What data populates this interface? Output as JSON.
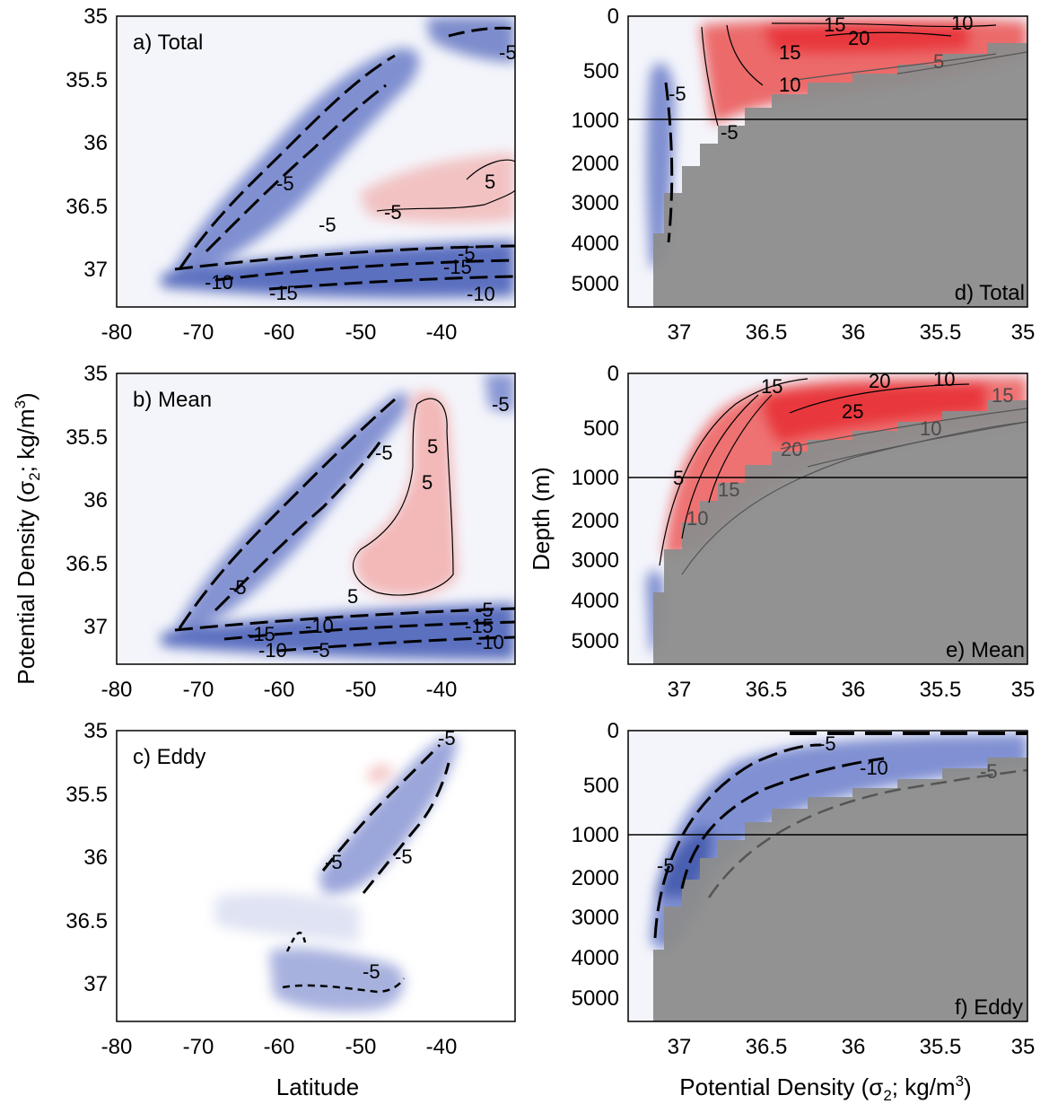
{
  "figure": {
    "left_ylabel_prefix": "Potential Density (σ",
    "left_ylabel_sub": "2",
    "left_ylabel_suffix": "; kg/m",
    "left_ylabel_sup": "3",
    "left_ylabel_close": ")",
    "left_xlabel": "Latitude",
    "right_ylabel": "Depth (m)",
    "right_xlabel_prefix": "Potential Density (σ",
    "right_xlabel_sub": "2",
    "right_xlabel_suffix": "; kg/m",
    "right_xlabel_sup": "3",
    "right_xlabel_close": ")"
  },
  "colors": {
    "negative": "#4a5fb0",
    "negative_light": "#b9c2e4",
    "positive": "#e8373c",
    "positive_light": "#f6c9c9",
    "land": "#8c8c8c",
    "contour": "#000000",
    "contour_grey": "#555555"
  },
  "chart_data": [
    {
      "id": "a",
      "type": "heatmap",
      "panel_label": "a) Total",
      "x_ticks": [
        "-80",
        "-70",
        "-60",
        "-50",
        "-40"
      ],
      "y_ticks": [
        "35",
        "35.5",
        "36",
        "36.5",
        "37"
      ],
      "xlim": [
        -80,
        -31
      ],
      "ylim": [
        37.3,
        35
      ],
      "contour_labels": [
        "-5",
        "-5",
        "-5",
        "-5",
        "-5",
        "5",
        "-5",
        "-10",
        "-15",
        "-10",
        "-15",
        "-10"
      ]
    },
    {
      "id": "b",
      "type": "heatmap",
      "panel_label": "b) Mean",
      "x_ticks": [
        "-80",
        "-70",
        "-60",
        "-50",
        "-40"
      ],
      "y_ticks": [
        "35",
        "35.5",
        "36",
        "36.5",
        "37"
      ],
      "xlim": [
        -80,
        -31
      ],
      "ylim": [
        37.3,
        35
      ],
      "contour_labels": [
        "-5",
        "-5",
        "5",
        "5",
        "5",
        "-5",
        "-10",
        "-15",
        "-10",
        "-5",
        "-5",
        "-15",
        "-10"
      ]
    },
    {
      "id": "c",
      "type": "heatmap",
      "panel_label": "c) Eddy",
      "x_ticks": [
        "-80",
        "-70",
        "-60",
        "-50",
        "-40"
      ],
      "y_ticks": [
        "35",
        "35.5",
        "36",
        "36.5",
        "37"
      ],
      "xlim": [
        -80,
        -31
      ],
      "ylim": [
        37.3,
        35
      ],
      "contour_labels": [
        "-5",
        "-5",
        "-5",
        "-5"
      ]
    },
    {
      "id": "d",
      "type": "heatmap",
      "panel_label": "d) Total",
      "x_ticks": [
        "37",
        "36.5",
        "36",
        "35.5",
        "35"
      ],
      "y_ticks": [
        "0",
        "500",
        "1000",
        "2000",
        "3000",
        "4000",
        "5000"
      ],
      "contour_labels": [
        "15",
        "20",
        "10",
        "15",
        "10",
        "5",
        "-5",
        "-5"
      ]
    },
    {
      "id": "e",
      "type": "heatmap",
      "panel_label": "e) Mean",
      "x_ticks": [
        "37",
        "36.5",
        "36",
        "35.5",
        "35"
      ],
      "y_ticks": [
        "0",
        "500",
        "1000",
        "2000",
        "3000",
        "4000",
        "5000"
      ],
      "contour_labels": [
        "15",
        "20",
        "10",
        "25",
        "15",
        "20",
        "10",
        "15",
        "10",
        "5"
      ]
    },
    {
      "id": "f",
      "type": "heatmap",
      "panel_label": "f) Eddy",
      "x_ticks": [
        "37",
        "36.5",
        "36",
        "35.5",
        "35"
      ],
      "y_ticks": [
        "0",
        "500",
        "1000",
        "2000",
        "3000",
        "4000",
        "5000"
      ],
      "contour_labels": [
        "-5",
        "-10",
        "-5",
        "-5"
      ]
    }
  ]
}
